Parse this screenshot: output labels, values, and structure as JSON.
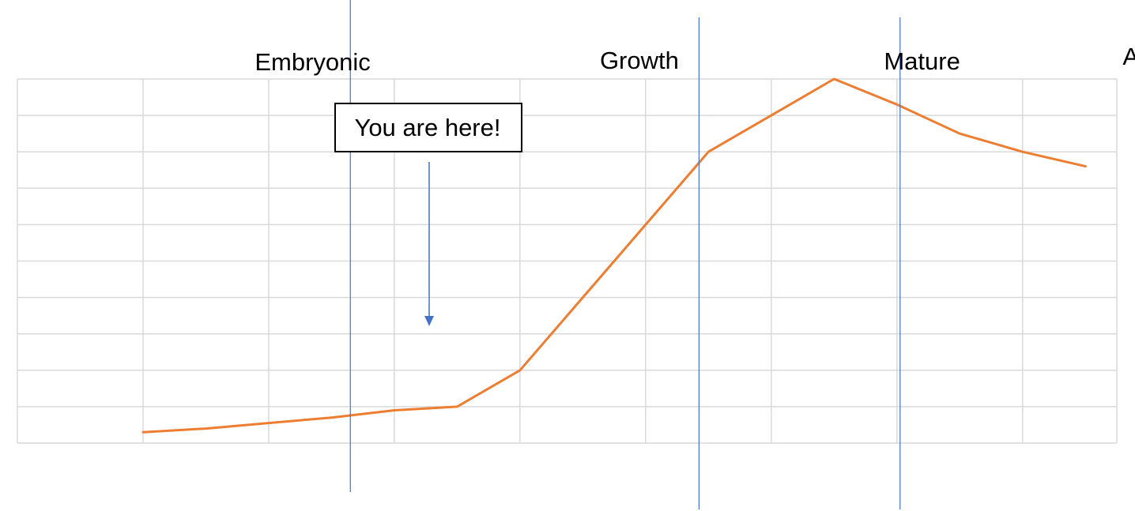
{
  "chart_data": {
    "type": "line",
    "title": "",
    "xlabel": "",
    "ylabel": "",
    "x": [
      0,
      1,
      2,
      3,
      4,
      5,
      6,
      7,
      8,
      9,
      10,
      11,
      12,
      13,
      14,
      15
    ],
    "series": [
      {
        "values": [
          0.3,
          0.4,
          0.55,
          0.7,
          0.9,
          1.0,
          2.0,
          4.0,
          6.0,
          8.0,
          9.0,
          10.0,
          9.3,
          8.5,
          8.0,
          7.6
        ]
      }
    ],
    "xlim": [
      -2,
      15.5
    ],
    "ylim": [
      0,
      10
    ],
    "grid": true,
    "gridColor": "#d9d9d9",
    "lineColor": "#ed7d31",
    "dividerColor": "#4472c4",
    "stages": [
      {
        "label": "Embryonic",
        "center": 2.7
      },
      {
        "label": "Growth",
        "center": 7.9
      },
      {
        "label": "Mature",
        "center": 12.4
      },
      {
        "label": "Ageing",
        "center": 16.2
      }
    ],
    "dividers": [
      3.3,
      8.85,
      12.05
    ],
    "annotation": {
      "text": "You are here!",
      "target_x": 5.55,
      "target_y": 3.2
    }
  }
}
